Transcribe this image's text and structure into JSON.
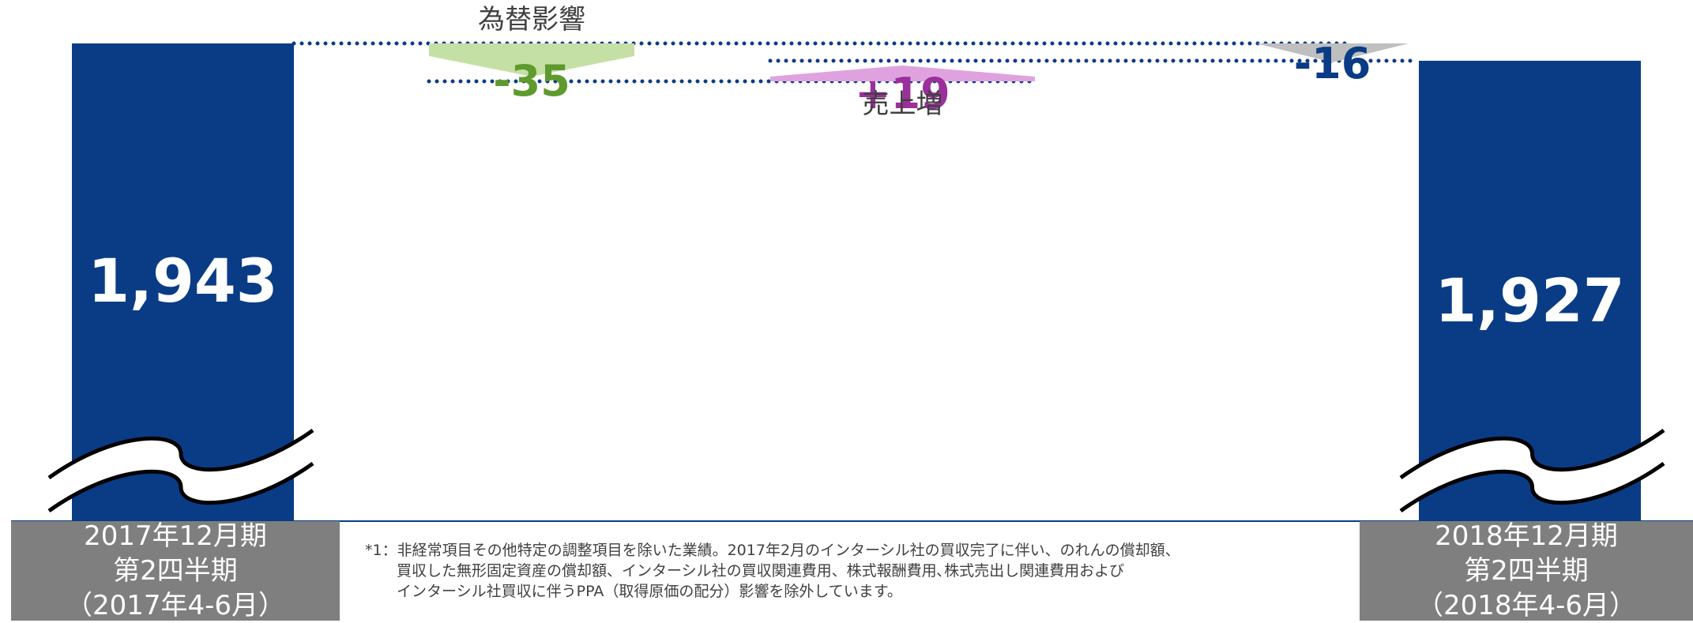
{
  "chart_data": {
    "type": "waterfall",
    "categories": [
      "2017年12月期 第2四半期 （2017年4-6月）",
      "為替影響",
      "売上増",
      "",
      "2018年12月期 第2四半期 （2018年4-6月）"
    ],
    "start": {
      "label": "1,943",
      "value": 1943
    },
    "steps": [
      {
        "name": "為替影響",
        "label": "-35",
        "value": -35,
        "color": "#c5e0a5",
        "text_color": "#5f9a2e"
      },
      {
        "name": "売上増",
        "label": "+19",
        "value": 19,
        "color": "#e0a2df",
        "text_color": "#9b2f9b"
      },
      {
        "name": "",
        "label": "-16",
        "value": -16,
        "color": "#bfbfbf",
        "text_color": "#0a3c86"
      }
    ],
    "end": {
      "label": "1,927",
      "value": 1927
    },
    "axis_break": true,
    "bar_color": "#0a3c86",
    "connector_color": "#0a3c86"
  },
  "period_left": [
    "2017年12月期",
    "第2四半期",
    "（2017年4-6月）"
  ],
  "period_right": [
    "2018年12月期",
    "第2四半期",
    "（2018年4-6月）"
  ],
  "footnote": [
    "*1：非経常項目その他特定の調整項目を除いた業績。2017年2月のインターシル社の買収完了に伴い、のれんの償却額、",
    "買収した無形固定資産の償却額、インターシル社の買収関連費用、株式報酬費用､株式売出し関連費用および",
    "インターシル社買収に伴うPPA（取得原価の配分）影響を除外しています。"
  ]
}
